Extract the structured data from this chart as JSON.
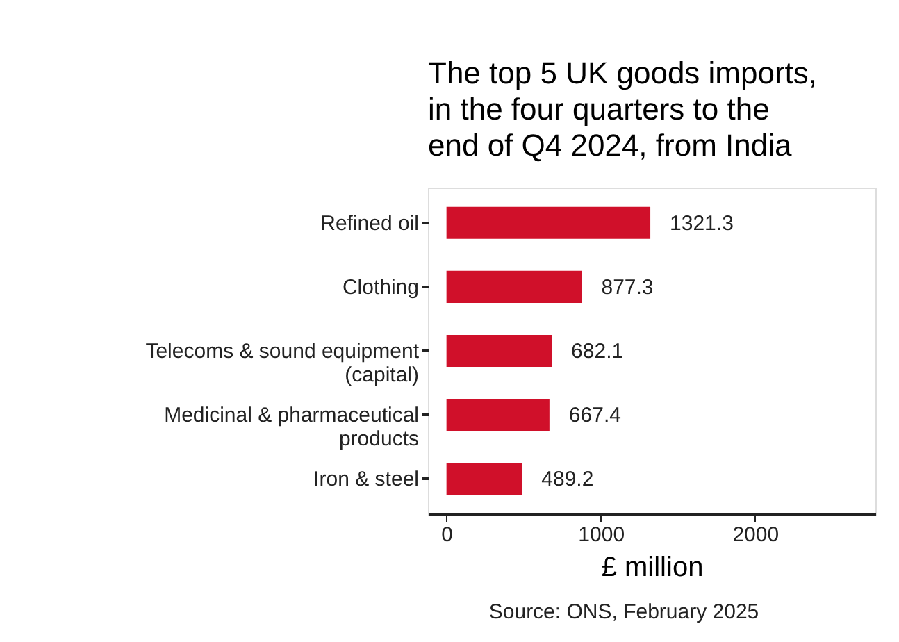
{
  "chart_data": {
    "type": "bar",
    "orientation": "horizontal",
    "title": "The top 5 UK goods imports, in the four quarters to the end of Q4 2024, from India",
    "categories": [
      "Refined oil",
      "Clothing",
      "Telecoms & sound equipment\n(capital)",
      "Medicinal & pharmaceutical\nproducts",
      "Iron & steel"
    ],
    "values": [
      1321.3,
      877.3,
      682.1,
      667.4,
      489.2
    ],
    "color": "#d0102a",
    "xlim": [
      -120,
      2780
    ],
    "xticks": [
      0,
      1000,
      2000
    ],
    "xlabel": "£ million",
    "annotations": [
      "Source: ONS, February 2025"
    ],
    "data_labels": true,
    "grid": false
  }
}
